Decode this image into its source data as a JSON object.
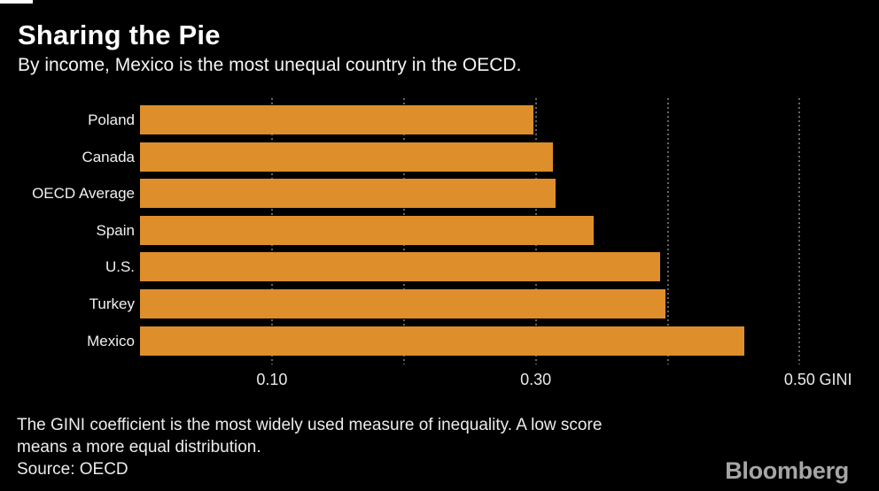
{
  "branding": {
    "top_mark_color": "#ffffff",
    "logo_text": "Bloomberg",
    "logo_color": "#a6a6a6"
  },
  "header": {
    "title": "Sharing the Pie",
    "subtitle": "By income, Mexico is the most unequal country in the OECD."
  },
  "chart_data": {
    "type": "bar",
    "orientation": "horizontal",
    "title": "Sharing the Pie",
    "subtitle": "By income, Mexico is the most unequal country in the OECD.",
    "categories": [
      "Poland",
      "Canada",
      "OECD Average",
      "Spain",
      "U.S.",
      "Turkey",
      "Mexico"
    ],
    "values": [
      0.298,
      0.313,
      0.315,
      0.344,
      0.394,
      0.398,
      0.458
    ],
    "xlabel": "GINI",
    "ylabel": "",
    "xlim": [
      0,
      0.54
    ],
    "x_ticks": [
      {
        "value": 0.1,
        "label": "0.10"
      },
      {
        "value": 0.3,
        "label": "0.30"
      },
      {
        "value": 0.5,
        "label": "0.50"
      }
    ],
    "gridline_values": [
      0.1,
      0.2,
      0.3,
      0.4,
      0.5
    ],
    "grid_style": "vertical-dotted",
    "legend": "none",
    "axis_unit_label": "GINI",
    "bar_color": "#de8e2b",
    "gridline_color": "#646464",
    "background_color": "#000000"
  },
  "footer": {
    "note_line1": "The GINI coefficient is the most widely used measure of inequality. A low score",
    "note_line2": "means a more equal distribution.",
    "source": "Source: OECD"
  }
}
